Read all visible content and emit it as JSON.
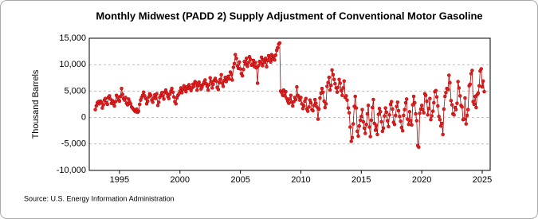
{
  "chart_data": {
    "type": "line",
    "title": "Monthly Midwest (PADD 2) Supply Adjustment of Conventional Motor Gasoline",
    "y_label": "Thousand Barrels",
    "source": "Source: U.S. Energy Information Administration",
    "xlim": [
      1992.5,
      2025.66
    ],
    "xticks": [
      1995,
      2000,
      2005,
      2010,
      2015,
      2020,
      2025
    ],
    "ylim": [
      -10000,
      15000
    ],
    "yticks": [
      {
        "value": -10000,
        "label": "-10,000"
      },
      {
        "value": -5000,
        "label": "-5,000"
      },
      0,
      {
        "value": 5000,
        "label": "5,000"
      },
      {
        "value": 10000,
        "label": "10,000"
      },
      {
        "value": 15000,
        "label": "15,000"
      }
    ],
    "grid": true,
    "x": [
      1993.0,
      1993.08,
      1993.17,
      1993.25,
      1993.33,
      1993.42,
      1993.5,
      1993.58,
      1993.67,
      1993.75,
      1993.83,
      1993.92,
      1994.0,
      1994.08,
      1994.17,
      1994.25,
      1994.33,
      1994.42,
      1994.5,
      1994.58,
      1994.67,
      1994.75,
      1994.83,
      1994.92,
      1995.0,
      1995.08,
      1995.17,
      1995.25,
      1995.33,
      1995.42,
      1995.5,
      1995.58,
      1995.67,
      1995.75,
      1995.83,
      1995.92,
      1996.0,
      1996.08,
      1996.17,
      1996.25,
      1996.33,
      1996.42,
      1996.5,
      1996.58,
      1996.67,
      1996.75,
      1996.83,
      1996.92,
      1997.0,
      1997.08,
      1997.17,
      1997.25,
      1997.33,
      1997.42,
      1997.5,
      1997.58,
      1997.67,
      1997.75,
      1997.83,
      1997.92,
      1998.0,
      1998.08,
      1998.17,
      1998.25,
      1998.33,
      1998.42,
      1998.5,
      1998.58,
      1998.67,
      1998.75,
      1998.83,
      1998.92,
      1999.0,
      1999.08,
      1999.17,
      1999.25,
      1999.33,
      1999.42,
      1999.5,
      1999.58,
      1999.67,
      1999.75,
      1999.83,
      1999.92,
      2000.0,
      2000.08,
      2000.17,
      2000.25,
      2000.33,
      2000.42,
      2000.5,
      2000.58,
      2000.67,
      2000.75,
      2000.83,
      2000.92,
      2001.0,
      2001.08,
      2001.17,
      2001.25,
      2001.33,
      2001.42,
      2001.5,
      2001.58,
      2001.67,
      2001.75,
      2001.83,
      2001.92,
      2002.0,
      2002.08,
      2002.17,
      2002.25,
      2002.33,
      2002.42,
      2002.5,
      2002.58,
      2002.67,
      2002.75,
      2002.83,
      2002.92,
      2003.0,
      2003.08,
      2003.17,
      2003.25,
      2003.33,
      2003.42,
      2003.5,
      2003.58,
      2003.67,
      2003.75,
      2003.83,
      2003.92,
      2004.0,
      2004.08,
      2004.17,
      2004.25,
      2004.33,
      2004.42,
      2004.5,
      2004.58,
      2004.67,
      2004.75,
      2004.83,
      2004.92,
      2005.0,
      2005.08,
      2005.17,
      2005.25,
      2005.33,
      2005.42,
      2005.5,
      2005.58,
      2005.67,
      2005.75,
      2005.83,
      2005.92,
      2006.0,
      2006.08,
      2006.17,
      2006.25,
      2006.33,
      2006.42,
      2006.5,
      2006.58,
      2006.67,
      2006.75,
      2006.83,
      2006.92,
      2007.0,
      2007.08,
      2007.17,
      2007.25,
      2007.33,
      2007.42,
      2007.5,
      2007.58,
      2007.67,
      2007.75,
      2007.83,
      2007.92,
      2008.0,
      2008.08,
      2008.17,
      2008.25,
      2008.33,
      2008.42,
      2008.5,
      2008.58,
      2008.67,
      2008.75,
      2008.83,
      2008.92,
      2009.0,
      2009.08,
      2009.17,
      2009.25,
      2009.33,
      2009.42,
      2009.5,
      2009.58,
      2009.67,
      2009.75,
      2009.83,
      2009.92,
      2010.0,
      2010.08,
      2010.17,
      2010.25,
      2010.33,
      2010.42,
      2010.5,
      2010.58,
      2010.67,
      2010.75,
      2010.83,
      2010.92,
      2011.0,
      2011.08,
      2011.17,
      2011.25,
      2011.33,
      2011.42,
      2011.5,
      2011.58,
      2011.67,
      2011.75,
      2011.83,
      2011.92,
      2012.0,
      2012.08,
      2012.17,
      2012.25,
      2012.33,
      2012.42,
      2012.5,
      2012.58,
      2012.67,
      2012.75,
      2012.83,
      2012.92,
      2013.0,
      2013.08,
      2013.17,
      2013.25,
      2013.33,
      2013.42,
      2013.5,
      2013.58,
      2013.67,
      2013.75,
      2013.83,
      2013.92,
      2014.0,
      2014.08,
      2014.17,
      2014.25,
      2014.33,
      2014.42,
      2014.5,
      2014.58,
      2014.67,
      2014.75,
      2014.83,
      2014.92,
      2015.0,
      2015.08,
      2015.17,
      2015.25,
      2015.33,
      2015.42,
      2015.5,
      2015.58,
      2015.67,
      2015.75,
      2015.83,
      2015.92,
      2016.0,
      2016.08,
      2016.17,
      2016.25,
      2016.33,
      2016.42,
      2016.5,
      2016.58,
      2016.67,
      2016.75,
      2016.83,
      2016.92,
      2017.0,
      2017.08,
      2017.17,
      2017.25,
      2017.33,
      2017.42,
      2017.5,
      2017.58,
      2017.67,
      2017.75,
      2017.83,
      2017.92,
      2018.0,
      2018.08,
      2018.17,
      2018.25,
      2018.33,
      2018.42,
      2018.5,
      2018.58,
      2018.67,
      2018.75,
      2018.83,
      2018.92,
      2019.0,
      2019.08,
      2019.17,
      2019.25,
      2019.33,
      2019.42,
      2019.5,
      2019.58,
      2019.67,
      2019.75,
      2019.83,
      2019.92,
      2020.0,
      2020.08,
      2020.17,
      2020.25,
      2020.33,
      2020.42,
      2020.5,
      2020.58,
      2020.67,
      2020.75,
      2020.83,
      2020.92,
      2021.0,
      2021.08,
      2021.17,
      2021.25,
      2021.33,
      2021.42,
      2021.5,
      2021.58,
      2021.67,
      2021.75,
      2021.83,
      2021.92,
      2022.0,
      2022.08,
      2022.17,
      2022.25,
      2022.33,
      2022.42,
      2022.5,
      2022.58,
      2022.67,
      2022.75,
      2022.83,
      2022.92,
      2023.0,
      2023.08,
      2023.17,
      2023.25,
      2023.33,
      2023.42,
      2023.5,
      2023.58,
      2023.67,
      2023.75,
      2023.83,
      2023.92,
      2024.0,
      2024.08,
      2024.17,
      2024.25,
      2024.33,
      2024.42,
      2024.5,
      2024.58,
      2024.67,
      2024.75,
      2024.83,
      2024.92,
      2025.0,
      2025.08,
      2025.17
    ],
    "series": [
      {
        "color": "#b00000",
        "values": [
          1500,
          2200,
          2800,
          3000,
          2600,
          3100,
          2900,
          1800,
          2400,
          3300,
          3600,
          2800,
          2500,
          3800,
          4100,
          3500,
          2700,
          3200,
          2600,
          2200,
          3000,
          4200,
          3900,
          3300,
          3100,
          4000,
          5500,
          4400,
          3600,
          3300,
          3800,
          2700,
          2400,
          3500,
          3000,
          2600,
          2000,
          1800,
          1500,
          1300,
          1100,
          1600,
          1000,
          1200,
          2500,
          3300,
          3800,
          4200,
          4800,
          4100,
          3600,
          2600,
          3100,
          3900,
          4500,
          4200,
          3300,
          2900,
          3700,
          4300,
          3600,
          4500,
          2300,
          2900,
          3800,
          4200,
          4700,
          4100,
          3500,
          4800,
          5200,
          4600,
          4000,
          3600,
          4400,
          5000,
          5500,
          4800,
          3900,
          3000,
          2600,
          3700,
          4200,
          4500,
          5000,
          5600,
          4700,
          5300,
          6000,
          5400,
          4900,
          5800,
          5500,
          6200,
          5700,
          5100,
          5600,
          6300,
          5900,
          6800,
          6500,
          5200,
          6000,
          6700,
          6100,
          5400,
          5800,
          6300,
          6700,
          7100,
          6400,
          5900,
          5200,
          6200,
          7500,
          6800,
          5600,
          6300,
          7000,
          7400,
          6900,
          5700,
          5300,
          6600,
          7200,
          8100,
          6500,
          5900,
          7000,
          7600,
          6800,
          7300,
          7800,
          7300,
          8600,
          8200,
          7100,
          9500,
          10200,
          11900,
          11200,
          9800,
          9300,
          10500,
          9200,
          8300,
          7900,
          9100,
          10600,
          10100,
          11200,
          9700,
          10400,
          11500,
          11000,
          9900,
          10100,
          10800,
          9600,
          10400,
          9400,
          6500,
          9800,
          10600,
          10300,
          11400,
          9800,
          10900,
          10400,
          11200,
          9600,
          10800,
          11700,
          11300,
          10500,
          11900,
          11000,
          11600,
          10900,
          11800,
          12700,
          13200,
          13900,
          14100,
          5000,
          4700,
          4200,
          5200,
          4100,
          4900,
          3600,
          3100,
          2700,
          3500,
          4200,
          2900,
          2200,
          3000,
          3800,
          3400,
          5800,
          4200,
          3900,
          3300,
          3800,
          2600,
          1700,
          2200,
          3100,
          3600,
          1600,
          1200,
          2000,
          3300,
          2800,
          1500,
          1300,
          2300,
          3400,
          2700,
          2000,
          -300,
          1600,
          3700,
          4600,
          5500,
          4800,
          3100,
          1900,
          2600,
          5900,
          6600,
          7600,
          5200,
          6100,
          9000,
          8100,
          7200,
          6400,
          5600,
          4800,
          5700,
          7200,
          6500,
          5100,
          4200,
          5600,
          6900,
          3800,
          4100,
          3300,
          1800,
          900,
          -1800,
          -4500,
          -3800,
          -1200,
          2100,
          4000,
          1800,
          -2600,
          -3500,
          -1600,
          -500,
          200,
          1500,
          -800,
          -2000,
          -3000,
          -1300,
          700,
          2300,
          -1800,
          -3600,
          -500,
          1900,
          3400,
          -1100,
          -2400,
          -1500,
          -3200,
          600,
          1700,
          1100,
          -800,
          -2600,
          -2000,
          300,
          1800,
          1000,
          -600,
          -1700,
          500,
          2500,
          3000,
          1600,
          -900,
          -1300,
          400,
          2100,
          2900,
          1300,
          200,
          -700,
          -1900,
          -2500,
          400,
          1500,
          2800,
          3500,
          -300,
          -1300,
          1100,
          -600,
          -1400,
          2400,
          4000,
          2800,
          700,
          -600,
          -5300,
          -5600,
          800,
          1600,
          2300,
          1500,
          900,
          4500,
          4200,
          3100,
          500,
          1700,
          3600,
          -400,
          300,
          1200,
          2800,
          4900,
          5100,
          3900,
          2200,
          200,
          -400,
          -1600,
          -1100,
          -3200,
          1600,
          4000,
          4700,
          5500,
          5300,
          8000,
          6600,
          3200,
          2400,
          700,
          500,
          1900,
          1500,
          2700,
          6800,
          5600,
          4100,
          2300,
          2000,
          -400,
          -300,
          3700,
          -1200,
          400,
          1500,
          6000,
          6300,
          8300,
          8900,
          3000,
          2500,
          4000,
          1900,
          4300,
          4600,
          6000,
          8800,
          9200,
          5800,
          6900,
          4900
        ]
      }
    ]
  }
}
